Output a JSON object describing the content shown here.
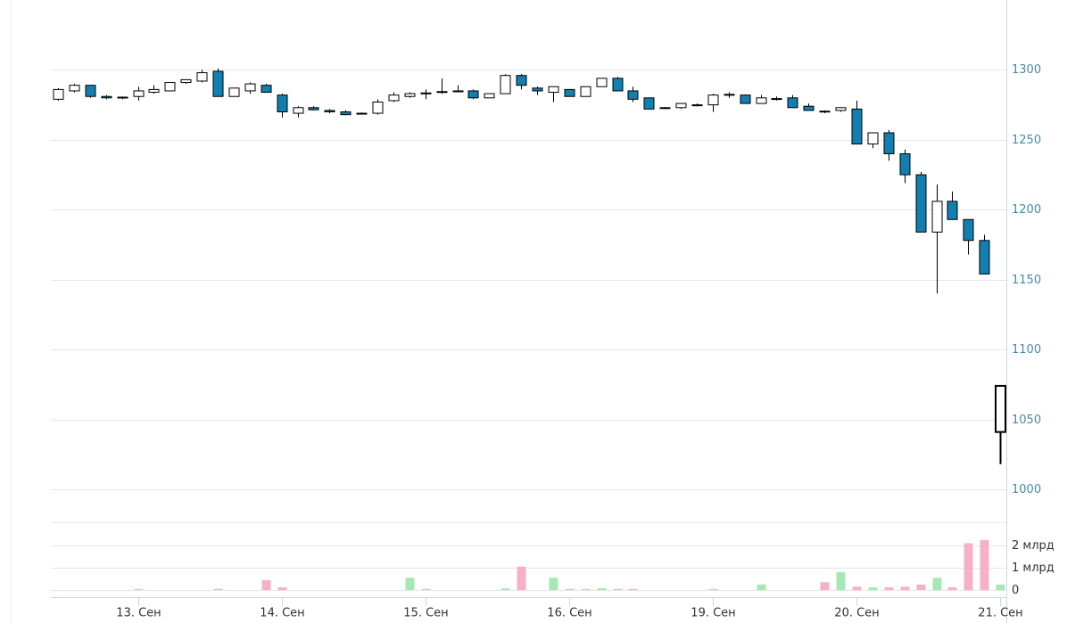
{
  "chart_data": {
    "type": "candlestick",
    "categories": [
      null,
      null,
      null,
      null,
      null,
      "13. Сен",
      null,
      null,
      null,
      null,
      null,
      null,
      null,
      null,
      "14. Сен",
      null,
      null,
      null,
      null,
      null,
      null,
      null,
      null,
      "15. Сен",
      null,
      null,
      null,
      null,
      null,
      null,
      null,
      null,
      "16. Сен",
      null,
      null,
      null,
      null,
      null,
      null,
      null,
      null,
      "19. Сен",
      null,
      null,
      null,
      null,
      null,
      null,
      null,
      null,
      "20. Сен",
      null,
      null,
      null,
      null,
      null,
      null,
      null,
      null,
      "21. Сен"
    ],
    "open": [
      1279,
      1285,
      1289,
      1281,
      1280,
      1281,
      1284,
      1285,
      1291,
      1292,
      1299,
      1281,
      1285,
      1289,
      1282,
      1269,
      1273,
      1271,
      1270,
      1269,
      1269,
      1278,
      1281,
      1283,
      1284,
      1285,
      1285,
      1280,
      1283,
      1296,
      1287,
      1284,
      1286,
      1281,
      1288,
      1294,
      1285,
      1280,
      1273,
      1273,
      1275,
      1275,
      1282,
      1282,
      1276,
      1279,
      1280,
      1274,
      1270.5,
      1271,
      1272,
      1247,
      1255,
      1240,
      1225,
      1184,
      1206,
      1193,
      1178,
      1041
    ],
    "high": [
      1287,
      1290,
      1289,
      1282,
      1281,
      1288,
      1289,
      1291,
      1293,
      1300,
      1301,
      1287,
      1291,
      1290,
      1283,
      1274,
      1274,
      1272,
      1271,
      1269.5,
      1279,
      1284,
      1284,
      1286,
      1294,
      1289,
      1286,
      1283,
      1297,
      1297,
      1288,
      1288,
      1286,
      1288,
      1294,
      1295,
      1288,
      1280,
      1273.5,
      1276,
      1276,
      1283,
      1284,
      1282.5,
      1282,
      1281,
      1282,
      1276,
      1271,
      1273,
      1278,
      1255,
      1257,
      1243,
      1227,
      1218,
      1213,
      1193,
      1182,
      1074
    ],
    "low": [
      1278,
      1284,
      1280,
      1279,
      1279,
      1278,
      1283,
      1285,
      1290,
      1291,
      1281,
      1281,
      1283,
      1284,
      1266,
      1266,
      1271,
      1269,
      1267.5,
      1268,
      1268,
      1277,
      1280,
      1279,
      1283,
      1284,
      1279,
      1280,
      1283,
      1286,
      1282,
      1277,
      1281,
      1281,
      1288,
      1285,
      1277,
      1272,
      1272,
      1272,
      1274,
      1270,
      1280,
      1276,
      1276,
      1278,
      1273,
      1271,
      1269,
      1270,
      1247,
      1244,
      1235,
      1219,
      1184,
      1140,
      1193,
      1168,
      1154,
      1018
    ],
    "close": [
      1286,
      1289,
      1281,
      1280,
      1280.5,
      1285,
      1286,
      1291,
      1293,
      1298,
      1281,
      1287,
      1290,
      1284,
      1270,
      1273,
      1271.5,
      1270,
      1268,
      1268.5,
      1277,
      1282,
      1283,
      1283.5,
      1284.5,
      1284.5,
      1280,
      1283,
      1296,
      1289,
      1285,
      1288,
      1281,
      1288,
      1294,
      1285,
      1279,
      1272,
      1272.5,
      1276,
      1274.5,
      1282,
      1282.5,
      1276,
      1280,
      1279.5,
      1273,
      1271,
      1270,
      1273,
      1247,
      1255,
      1240,
      1225,
      1184,
      1206,
      1193,
      1178,
      1154,
      1074
    ],
    "up_color": "#ffffff",
    "down_color": "#127fb1",
    "ylim": [
      1000,
      1350
    ],
    "yticks": [
      1000,
      1050,
      1100,
      1150,
      1200,
      1250,
      1300
    ],
    "grid": true,
    "volume": {
      "values": [
        0,
        0,
        0,
        0,
        0,
        50000000,
        0,
        0,
        0,
        0,
        50000000,
        0,
        0,
        440000000,
        120000000,
        0,
        0,
        0,
        0,
        0,
        0,
        0,
        550000000,
        50000000,
        0,
        0,
        0,
        0,
        70000000,
        1050000000,
        0,
        550000000,
        50000000,
        50000000,
        80000000,
        50000000,
        50000000,
        0,
        0,
        0,
        0,
        50000000,
        0,
        0,
        250000000,
        0,
        0,
        0,
        350000000,
        800000000,
        150000000,
        120000000,
        120000000,
        150000000,
        250000000,
        550000000,
        120000000,
        2100000000,
        2250000000,
        250000000
      ],
      "colors": [
        null,
        null,
        null,
        null,
        null,
        "#a6e8b4",
        null,
        null,
        null,
        null,
        "#f7b0c8",
        null,
        null,
        "#f7b0c8",
        "#f7b0c8",
        null,
        null,
        null,
        null,
        null,
        null,
        null,
        "#a6e8b4",
        "#a6e8b4",
        null,
        null,
        null,
        null,
        "#a6e8b4",
        "#f7b0c8",
        null,
        "#a6e8b4",
        "#f7b0c8",
        "#a6e8b4",
        "#a6e8b4",
        "#f7b0c8",
        "#f7b0c8",
        null,
        null,
        null,
        null,
        "#a6e8b4",
        null,
        null,
        "#a6e8b4",
        null,
        null,
        null,
        "#f7b0c8",
        "#a6e8b4",
        "#f7b0c8",
        "#a6e8b4",
        "#f7b0c8",
        "#f7b0c8",
        "#f7b0c8",
        "#a6e8b4",
        "#f7b0c8",
        "#f7b0c8",
        "#f7b0c8",
        "#a6e8b4"
      ],
      "ylim": [
        0,
        3000000000
      ],
      "yticks": [
        0,
        {
          "value": 1000000000,
          "label": "1 млрд"
        },
        {
          "value": 2000000000,
          "label": "2 млрд"
        }
      ]
    }
  }
}
